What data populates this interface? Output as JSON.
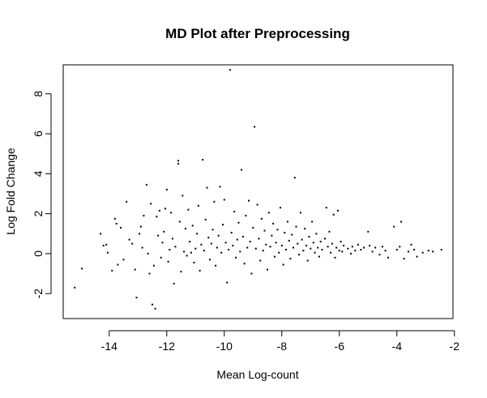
{
  "chart_data": {
    "type": "scatter",
    "title": "MD Plot after Preprocessing",
    "xlabel": "Mean Log-count",
    "ylabel": "Log Fold Change",
    "xlim": [
      -15.6,
      -2.05
    ],
    "ylim": [
      -3.25,
      9.45
    ],
    "x_ticks": [
      -14,
      -12,
      -10,
      -8,
      -6,
      -4,
      -2
    ],
    "y_ticks": [
      -2,
      0,
      2,
      4,
      6,
      8
    ],
    "grid": false,
    "legend": "none",
    "point_color": "#000000",
    "points": [
      [
        -15.2,
        -1.7
      ],
      [
        -14.95,
        -0.75
      ],
      [
        -14.3,
        1.0
      ],
      [
        -14.2,
        0.4
      ],
      [
        -14.1,
        0.45
      ],
      [
        -14.05,
        0.05
      ],
      [
        -13.9,
        -0.85
      ],
      [
        -13.8,
        1.75
      ],
      [
        -13.75,
        1.5
      ],
      [
        -13.7,
        -0.55
      ],
      [
        -13.6,
        1.3
      ],
      [
        -13.5,
        -0.3
      ],
      [
        -13.4,
        2.6
      ],
      [
        -13.3,
        0.7
      ],
      [
        -13.2,
        0.5
      ],
      [
        -13.1,
        -0.8
      ],
      [
        -13.05,
        -2.2
      ],
      [
        -12.95,
        1.0
      ],
      [
        -12.9,
        1.35
      ],
      [
        -12.85,
        0.3
      ],
      [
        -12.8,
        1.9
      ],
      [
        -12.7,
        3.45
      ],
      [
        -12.65,
        0.0
      ],
      [
        -12.6,
        -1.0
      ],
      [
        -12.55,
        2.5
      ],
      [
        -12.5,
        -2.55
      ],
      [
        -12.45,
        -0.6
      ],
      [
        -12.4,
        -2.75
      ],
      [
        -12.35,
        1.85
      ],
      [
        -12.3,
        0.9
      ],
      [
        -12.25,
        2.15
      ],
      [
        -12.2,
        -0.2
      ],
      [
        -12.15,
        0.55
      ],
      [
        -12.1,
        1.1
      ],
      [
        -12.05,
        2.25
      ],
      [
        -12.0,
        3.2
      ],
      [
        -11.95,
        -0.4
      ],
      [
        -11.9,
        0.2
      ],
      [
        -11.85,
        2.05
      ],
      [
        -11.8,
        0.75
      ],
      [
        -11.75,
        -1.5
      ],
      [
        -11.7,
        0.35
      ],
      [
        -11.6,
        4.65
      ],
      [
        -11.6,
        4.5
      ],
      [
        -11.55,
        1.6
      ],
      [
        -11.5,
        -0.9
      ],
      [
        -11.45,
        2.9
      ],
      [
        -11.4,
        0.1
      ],
      [
        -11.35,
        1.25
      ],
      [
        -11.3,
        -0.1
      ],
      [
        -11.25,
        2.2
      ],
      [
        -11.2,
        0.6
      ],
      [
        -11.15,
        0.05
      ],
      [
        -11.1,
        1.4
      ],
      [
        -11.05,
        -0.45
      ],
      [
        -11.0,
        0.25
      ],
      [
        -10.95,
        1.0
      ],
      [
        -10.9,
        2.4
      ],
      [
        -10.85,
        -0.85
      ],
      [
        -10.8,
        0.45
      ],
      [
        -10.75,
        4.7
      ],
      [
        -10.7,
        0.15
      ],
      [
        -10.65,
        1.7
      ],
      [
        -10.6,
        3.3
      ],
      [
        -10.55,
        0.8
      ],
      [
        -10.5,
        -0.3
      ],
      [
        -10.45,
        0.5
      ],
      [
        -10.4,
        1.2
      ],
      [
        -10.35,
        2.6
      ],
      [
        -10.3,
        -0.6
      ],
      [
        -10.25,
        0.3
      ],
      [
        -10.2,
        0.9
      ],
      [
        -10.15,
        3.35
      ],
      [
        -10.1,
        0.05
      ],
      [
        -10.05,
        1.45
      ],
      [
        -10.0,
        2.7
      ],
      [
        -9.95,
        0.55
      ],
      [
        -9.9,
        -1.45
      ],
      [
        -9.85,
        0.2
      ],
      [
        -9.8,
        9.2
      ],
      [
        -9.75,
        1.05
      ],
      [
        -9.7,
        0.4
      ],
      [
        -9.65,
        2.1
      ],
      [
        -9.6,
        -0.2
      ],
      [
        -9.55,
        0.7
      ],
      [
        -9.5,
        1.55
      ],
      [
        -9.45,
        0.1
      ],
      [
        -9.4,
        4.2
      ],
      [
        -9.35,
        0.85
      ],
      [
        -9.3,
        -0.5
      ],
      [
        -9.25,
        1.9
      ],
      [
        -9.2,
        0.3
      ],
      [
        -9.15,
        2.65
      ],
      [
        -9.1,
        0.6
      ],
      [
        -9.05,
        -1.0
      ],
      [
        -9.0,
        1.3
      ],
      [
        -8.95,
        6.35
      ],
      [
        -8.9,
        0.25
      ],
      [
        -8.85,
        2.45
      ],
      [
        -8.8,
        0.75
      ],
      [
        -8.75,
        -0.35
      ],
      [
        -8.7,
        1.75
      ],
      [
        -8.65,
        0.15
      ],
      [
        -8.6,
        1.15
      ],
      [
        -8.55,
        0.45
      ],
      [
        -8.5,
        -0.8
      ],
      [
        -8.45,
        2.05
      ],
      [
        -8.4,
        0.35
      ],
      [
        -8.35,
        0.9
      ],
      [
        -8.3,
        1.5
      ],
      [
        -8.25,
        -0.15
      ],
      [
        -8.2,
        0.55
      ],
      [
        -8.15,
        1.2
      ],
      [
        -8.1,
        0.05
      ],
      [
        -8.05,
        2.3
      ],
      [
        -8.0,
        0.4
      ],
      [
        -7.95,
        -0.55
      ],
      [
        -7.9,
        1.05
      ],
      [
        -7.85,
        0.2
      ],
      [
        -7.8,
        1.6
      ],
      [
        -7.75,
        0.65
      ],
      [
        -7.7,
        -0.25
      ],
      [
        -7.65,
        0.95
      ],
      [
        -7.6,
        0.3
      ],
      [
        -7.55,
        3.8
      ],
      [
        -7.5,
        1.35
      ],
      [
        -7.45,
        0.5
      ],
      [
        -7.4,
        -0.05
      ],
      [
        -7.35,
        2.05
      ],
      [
        -7.3,
        0.7
      ],
      [
        -7.25,
        0.15
      ],
      [
        -7.2,
        1.25
      ],
      [
        -7.15,
        0.4
      ],
      [
        -7.1,
        -0.35
      ],
      [
        -7.05,
        0.85
      ],
      [
        -7.0,
        0.25
      ],
      [
        -6.95,
        1.6
      ],
      [
        -6.9,
        0.55
      ],
      [
        -6.85,
        0.05
      ],
      [
        -6.8,
        1.0
      ],
      [
        -6.75,
        0.3
      ],
      [
        -6.7,
        -0.15
      ],
      [
        -6.65,
        0.6
      ],
      [
        -6.6,
        0.2
      ],
      [
        -6.5,
        0.75
      ],
      [
        -6.45,
        2.3
      ],
      [
        -6.4,
        0.35
      ],
      [
        -6.35,
        1.1
      ],
      [
        -6.3,
        0.05
      ],
      [
        -6.25,
        0.5
      ],
      [
        -6.2,
        1.95
      ],
      [
        -6.15,
        -0.2
      ],
      [
        -6.1,
        0.3
      ],
      [
        -6.05,
        2.15
      ],
      [
        -6.0,
        0.15
      ],
      [
        -5.95,
        0.6
      ],
      [
        -5.9,
        0.1
      ],
      [
        -5.85,
        0.4
      ],
      [
        -5.7,
        0.25
      ],
      [
        -5.6,
        0.0
      ],
      [
        -5.55,
        0.35
      ],
      [
        -5.45,
        0.15
      ],
      [
        -5.35,
        0.45
      ],
      [
        -5.25,
        0.2
      ],
      [
        -5.15,
        0.3
      ],
      [
        -5.0,
        1.1
      ],
      [
        -4.95,
        0.4
      ],
      [
        -4.85,
        0.1
      ],
      [
        -4.75,
        0.3
      ],
      [
        -4.6,
        -0.05
      ],
      [
        -4.5,
        0.35
      ],
      [
        -4.4,
        0.15
      ],
      [
        -4.3,
        -0.2
      ],
      [
        -4.1,
        1.35
      ],
      [
        -4.0,
        0.2
      ],
      [
        -3.9,
        0.35
      ],
      [
        -3.85,
        1.6
      ],
      [
        -3.75,
        -0.25
      ],
      [
        -3.6,
        0.1
      ],
      [
        -3.5,
        0.45
      ],
      [
        -3.4,
        0.2
      ],
      [
        -3.3,
        -0.15
      ],
      [
        -3.1,
        0.05
      ],
      [
        -2.9,
        0.15
      ],
      [
        -2.75,
        0.1
      ],
      [
        -2.45,
        0.2
      ]
    ]
  }
}
